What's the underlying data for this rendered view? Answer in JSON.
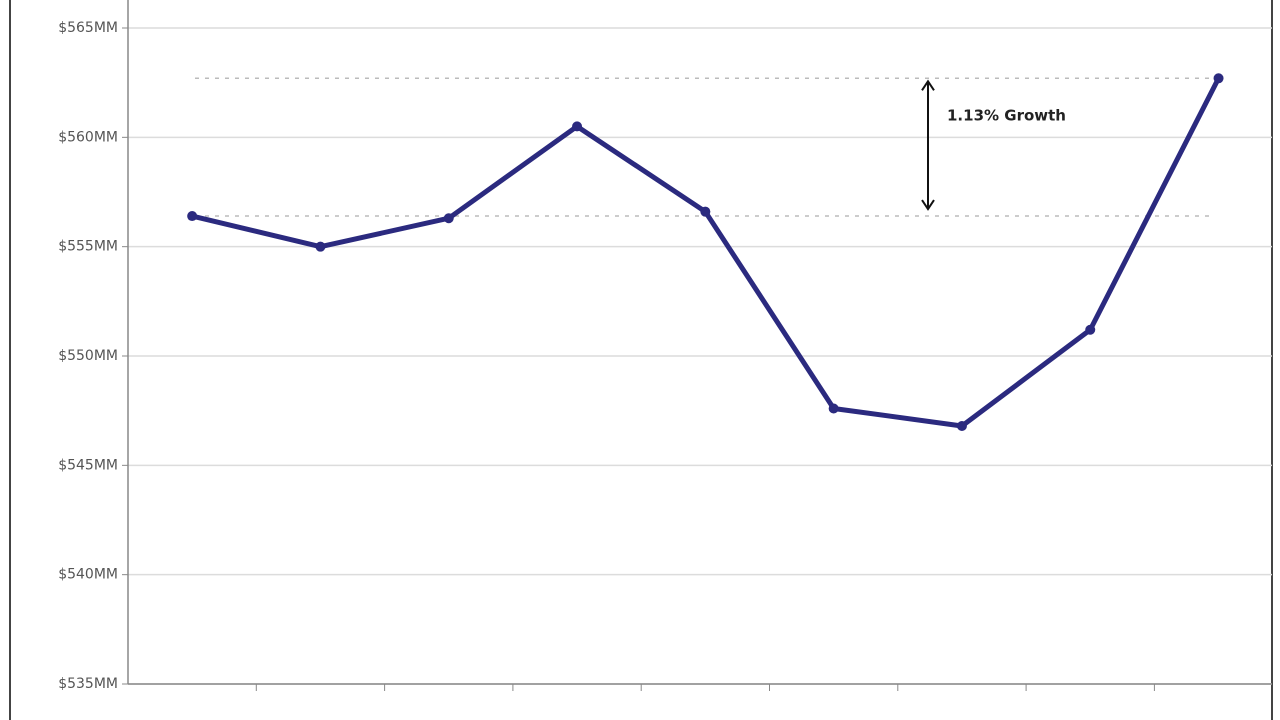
{
  "chart_data": {
    "type": "line",
    "categories": [
      null,
      null,
      null,
      null,
      null,
      null,
      null,
      null,
      null
    ],
    "values": [
      556.4,
      555.0,
      556.3,
      560.5,
      556.6,
      547.6,
      546.8,
      551.2,
      562.7
    ],
    "color": "#2b2a7f",
    "ylim": [
      535,
      565
    ],
    "yticks": [
      {
        "value": 535,
        "label": "$535MM"
      },
      {
        "value": 540,
        "label": "$540MM"
      },
      {
        "value": 545,
        "label": "$545MM"
      },
      {
        "value": 550,
        "label": "$550MM"
      },
      {
        "value": 555,
        "label": "$555MM"
      },
      {
        "value": 560,
        "label": "$560MM"
      },
      {
        "value": 565,
        "label": "$565MM"
      }
    ],
    "grid": true,
    "reference_lines": [
      556.4,
      562.7
    ],
    "annotation": "1.13% Growth"
  }
}
